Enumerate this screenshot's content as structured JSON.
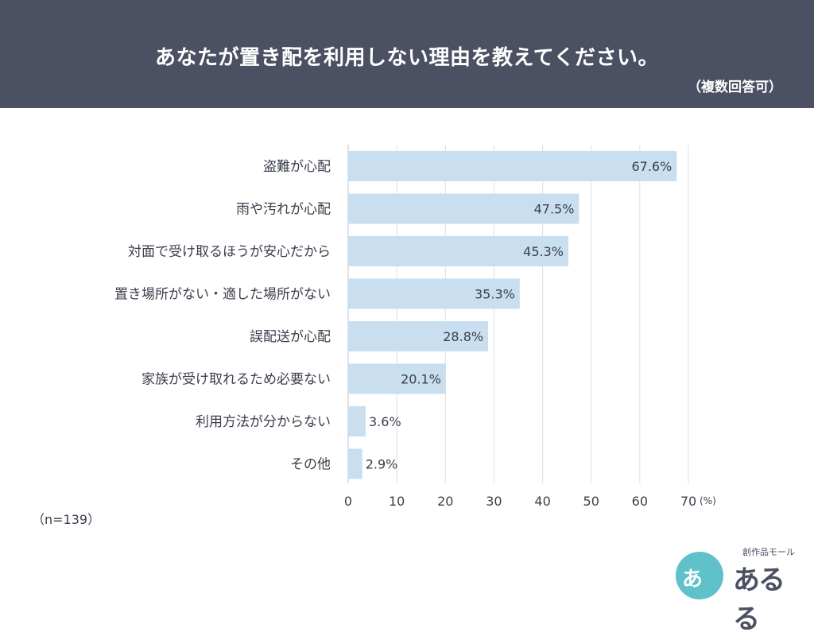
{
  "header": {
    "title": "あなたが置き配を利用しない理由を教えてください。",
    "subtitle": "（複数回答可）"
  },
  "note": "（n=139）",
  "logo": {
    "circle_text": "あ",
    "small_text": "創作品モール",
    "main_text": "あるる"
  },
  "chart_data": {
    "type": "bar",
    "orientation": "horizontal",
    "categories": [
      "盗難が心配",
      "雨や汚れが心配",
      "対面で受け取るほうが安心だから",
      "置き場所がない・適した場所がない",
      "誤配送が心配",
      "家族が受け取れるため必要ない",
      "利用方法が分からない",
      "その他"
    ],
    "values": [
      67.6,
      47.5,
      45.3,
      35.3,
      28.8,
      20.1,
      3.6,
      2.9
    ],
    "value_labels": [
      "67.6%",
      "47.5%",
      "45.3%",
      "35.3%",
      "28.8%",
      "20.1%",
      "3.6%",
      "2.9%"
    ],
    "xlim": [
      0,
      70
    ],
    "xticks": [
      0,
      10,
      20,
      30,
      40,
      50,
      60,
      70
    ],
    "x_unit": "(%)",
    "grid": true,
    "bar_color": "#c9deef"
  }
}
